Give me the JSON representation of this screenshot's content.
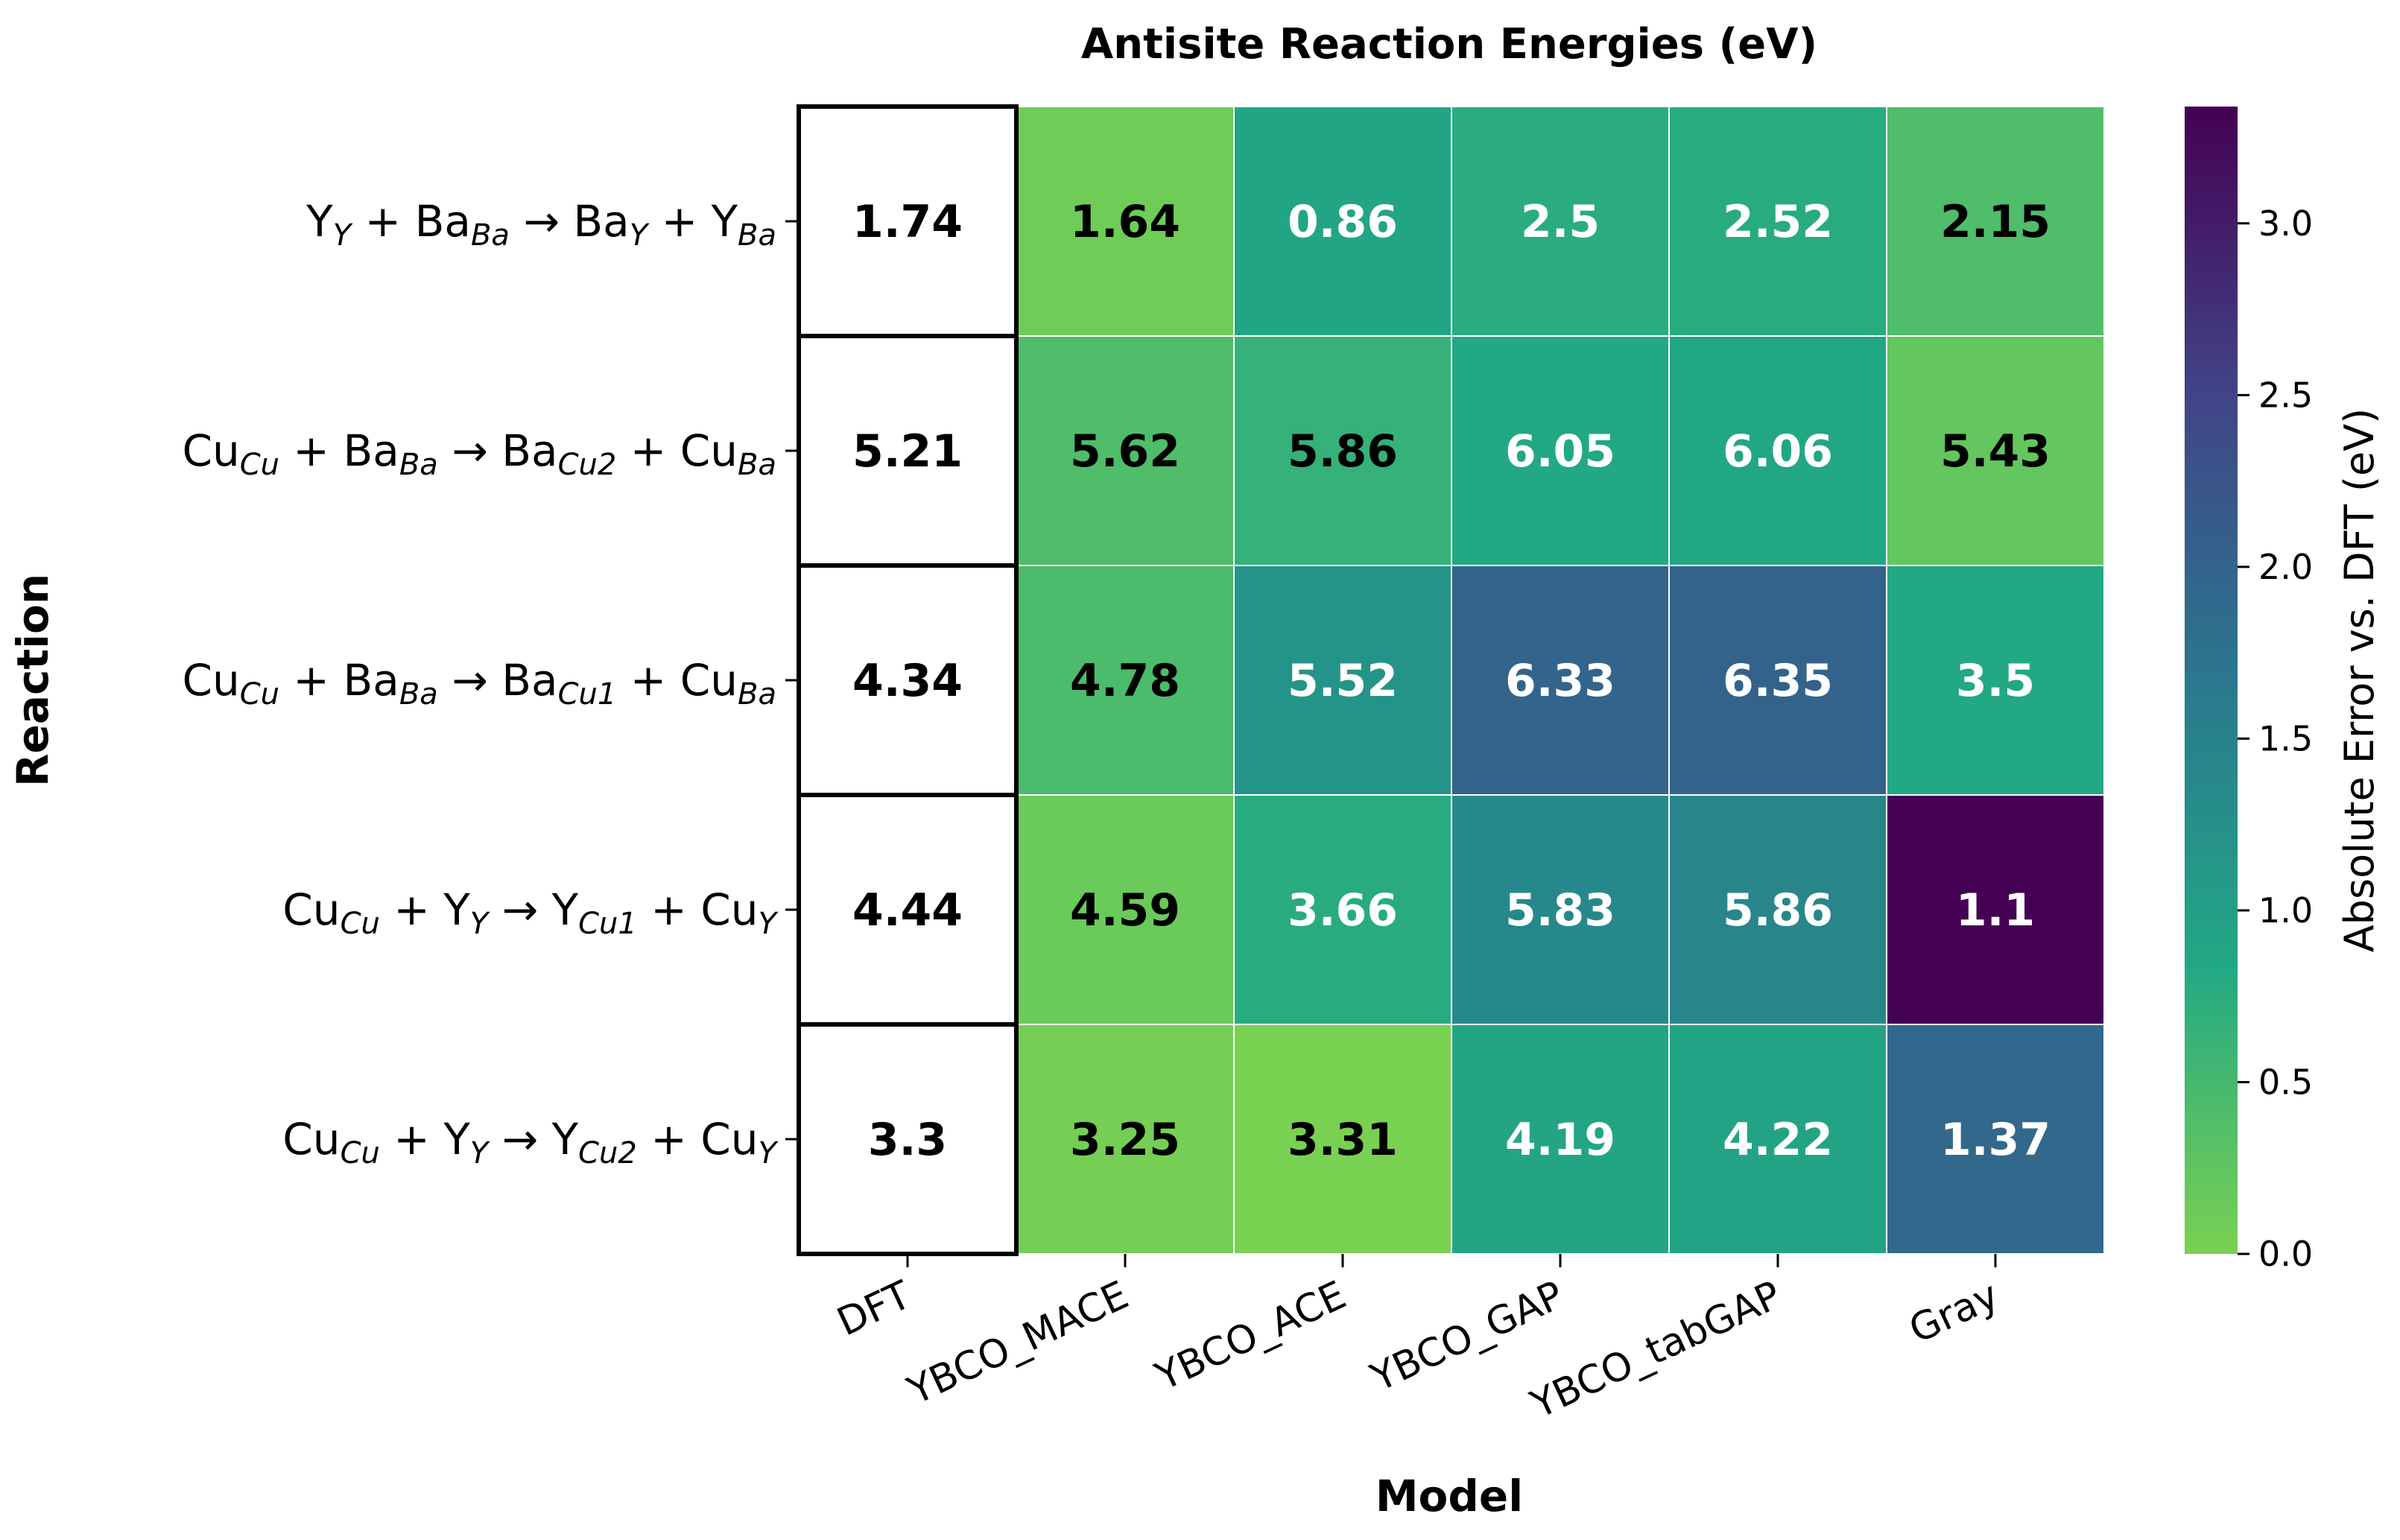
{
  "chart_data": {
    "type": "heatmap",
    "title": "Antisite Reaction Energies (eV)",
    "xlabel": "Model",
    "ylabel": "Reaction",
    "columns": [
      "DFT",
      "YBCO_MACE",
      "YBCO_ACE",
      "YBCO_GAP",
      "YBCO_tabGAP",
      "Gray"
    ],
    "rows": [
      {
        "label": [
          [
            "Y",
            ""
          ],
          [
            "Y",
            "sub"
          ],
          [
            " + Ba",
            ""
          ],
          [
            "Ba",
            "sub"
          ],
          [
            " → Ba",
            ""
          ],
          [
            "Y",
            "sub"
          ],
          [
            " + Y",
            ""
          ],
          [
            "Ba",
            "sub"
          ]
        ],
        "values": [
          1.74,
          1.64,
          0.86,
          2.5,
          2.52,
          2.15
        ]
      },
      {
        "label": [
          [
            "Cu",
            ""
          ],
          [
            "Cu",
            "sub"
          ],
          [
            " + Ba",
            ""
          ],
          [
            "Ba",
            "sub"
          ],
          [
            " → Ba",
            ""
          ],
          [
            "Cu2",
            "sub"
          ],
          [
            " + Cu",
            ""
          ],
          [
            "Ba",
            "sub"
          ]
        ],
        "values": [
          5.21,
          5.62,
          5.86,
          6.05,
          6.06,
          5.43
        ]
      },
      {
        "label": [
          [
            "Cu",
            ""
          ],
          [
            "Cu",
            "sub"
          ],
          [
            " + Ba",
            ""
          ],
          [
            "Ba",
            "sub"
          ],
          [
            " → Ba",
            ""
          ],
          [
            "Cu1",
            "sub"
          ],
          [
            " + Cu",
            ""
          ],
          [
            "Ba",
            "sub"
          ]
        ],
        "values": [
          4.34,
          4.78,
          5.52,
          6.33,
          6.35,
          3.5
        ]
      },
      {
        "label": [
          [
            "Cu",
            ""
          ],
          [
            "Cu",
            "sub"
          ],
          [
            " + Y",
            ""
          ],
          [
            "Y",
            "sub"
          ],
          [
            " → Y",
            ""
          ],
          [
            "Cu1",
            "sub"
          ],
          [
            " + Cu",
            ""
          ],
          [
            "Y",
            "sub"
          ]
        ],
        "values": [
          4.44,
          4.59,
          3.66,
          5.83,
          5.86,
          1.1
        ]
      },
      {
        "label": [
          [
            "Cu",
            ""
          ],
          [
            "Cu",
            "sub"
          ],
          [
            " + Y",
            ""
          ],
          [
            "Y",
            "sub"
          ],
          [
            " → Y",
            ""
          ],
          [
            "Cu2",
            "sub"
          ],
          [
            " + Cu",
            ""
          ],
          [
            "Y",
            "sub"
          ]
        ],
        "values": [
          3.3,
          3.25,
          3.31,
          4.19,
          4.22,
          1.37
        ]
      }
    ],
    "value_labels": [
      [
        "1.74",
        "1.64",
        "0.86",
        "2.5",
        "2.52",
        "2.15"
      ],
      [
        "5.21",
        "5.62",
        "5.86",
        "6.05",
        "6.06",
        "5.43"
      ],
      [
        "4.34",
        "4.78",
        "5.52",
        "6.33",
        "6.35",
        "3.5"
      ],
      [
        "4.44",
        "4.59",
        "3.66",
        "5.83",
        "5.86",
        "1.1"
      ],
      [
        "3.3",
        "3.25",
        "3.31",
        "4.19",
        "4.22",
        "1.37"
      ]
    ],
    "reference_column": "DFT",
    "color_metric": "absolute error vs. DFT",
    "colorbar": {
      "label": "Absolute Error vs. DFT (eV)",
      "range": [
        0.0,
        3.34
      ],
      "ticks": [
        0.0,
        0.5,
        1.0,
        1.5,
        2.0,
        2.5,
        3.0
      ],
      "tick_labels": [
        "0.0",
        "0.5",
        "1.0",
        "1.5",
        "2.0",
        "2.5",
        "3.0"
      ],
      "colormap": "viridis (reversed segment)",
      "colors": [
        "#7ad151",
        "#22a884",
        "#2a788e",
        "#414487",
        "#440154"
      ]
    },
    "reference_cell_color": "#ffffff",
    "light_text_color": "#ffffff",
    "dark_text_color": "#000000",
    "grid": false
  }
}
